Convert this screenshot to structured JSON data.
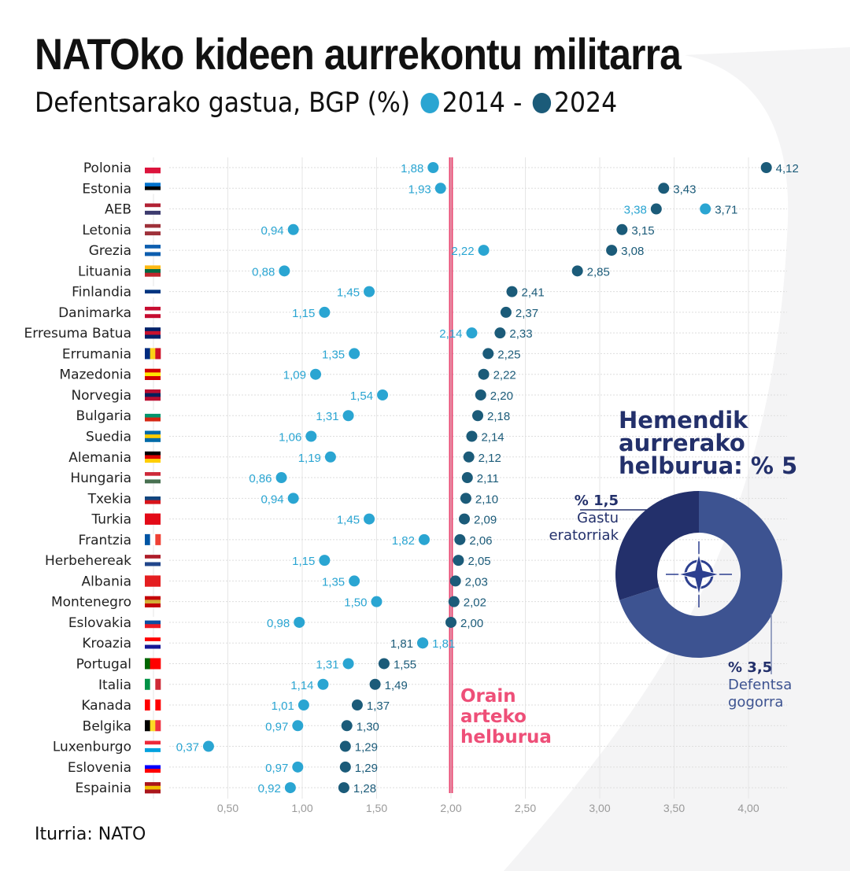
{
  "title": "NATOko kideen aurrekontu militarra",
  "subtitle": {
    "text": "Defentsarako gastua, BGP (%)",
    "y2014": "2014",
    "sep": "-",
    "y2024": "2024"
  },
  "source": "Iturria: NATO",
  "colors": {
    "c2014": "#2aa5d2",
    "c2024": "#1b5b79",
    "target_line": "#e8436e",
    "donut_dark": "#23306b",
    "donut_light": "#3d5391"
  },
  "target_label": [
    "Orain",
    "arteko",
    "helburua"
  ],
  "goal": {
    "title": [
      "Hemendik",
      "aurrerako",
      "helburua: % 5"
    ],
    "slices": [
      {
        "pct": "% 1,5",
        "label": [
          "Gastu",
          "eratorriak"
        ],
        "value": 1.5
      },
      {
        "pct": "% 3,5",
        "label": [
          "Defentsa",
          "gogorra"
        ],
        "value": 3.5
      }
    ],
    "icon": "nato-compass-icon"
  },
  "chart_data": {
    "type": "dumbbell",
    "series": [
      {
        "name": "2014"
      },
      {
        "name": "2024"
      }
    ],
    "xlim": [
      0,
      4.2
    ],
    "x_ticks": [
      "0,50",
      "1,00",
      "1,50",
      "2,00",
      "2,50",
      "3,00",
      "3,50",
      "4,00"
    ],
    "x_tick_values": [
      0.5,
      1,
      1.5,
      2,
      2.5,
      3,
      3.5,
      4
    ],
    "target": 2.0,
    "rows": [
      {
        "country": "Polonia",
        "v2014": 1.88,
        "v2024": 4.12,
        "flag": [
          "h",
          "#ffffff",
          "#dc143c"
        ]
      },
      {
        "country": "Estonia",
        "v2014": 1.93,
        "v2024": 3.43,
        "flag": [
          "h",
          "#0072ce",
          "#000000",
          "#ffffff"
        ]
      },
      {
        "country": "AEB",
        "v2014": 3.71,
        "v2024": 3.38,
        "flag": [
          "h",
          "#b22234",
          "#ffffff",
          "#3c3b6e"
        ]
      },
      {
        "country": "Letonia",
        "v2014": 0.94,
        "v2024": 3.15,
        "flag": [
          "h",
          "#9e3039",
          "#ffffff",
          "#9e3039"
        ]
      },
      {
        "country": "Grezia",
        "v2014": 2.22,
        "v2024": 3.08,
        "flag": [
          "h",
          "#0d5eaf",
          "#ffffff",
          "#0d5eaf"
        ]
      },
      {
        "country": "Lituania",
        "v2014": 0.88,
        "v2024": 2.85,
        "flag": [
          "h",
          "#fdb913",
          "#006a44",
          "#c1272d"
        ]
      },
      {
        "country": "Finlandia",
        "v2014": 1.45,
        "v2024": 2.41,
        "flag": [
          "h",
          "#ffffff",
          "#003580",
          "#ffffff"
        ]
      },
      {
        "country": "Danimarka",
        "v2014": 1.15,
        "v2024": 2.37,
        "flag": [
          "h",
          "#c60c30",
          "#ffffff",
          "#c60c30"
        ]
      },
      {
        "country": "Erresuma Batua",
        "v2014": 2.14,
        "v2024": 2.33,
        "flag": [
          "h",
          "#012169",
          "#c8102e",
          "#012169"
        ]
      },
      {
        "country": "Errumania",
        "v2014": 1.35,
        "v2024": 2.25,
        "flag": [
          "v",
          "#002b7f",
          "#fcd116",
          "#ce1126"
        ]
      },
      {
        "country": "Mazedonia",
        "v2014": 1.09,
        "v2024": 2.22,
        "flag": [
          "h",
          "#d20000",
          "#ffe600",
          "#d20000"
        ]
      },
      {
        "country": "Norvegia",
        "v2014": 1.54,
        "v2024": 2.2,
        "flag": [
          "h",
          "#ba0c2f",
          "#00205b",
          "#ba0c2f"
        ]
      },
      {
        "country": "Bulgaria",
        "v2014": 1.31,
        "v2024": 2.18,
        "flag": [
          "h",
          "#ffffff",
          "#00966e",
          "#d62612"
        ]
      },
      {
        "country": "Suedia",
        "v2014": 1.06,
        "v2024": 2.14,
        "flag": [
          "h",
          "#006aa7",
          "#fecc00",
          "#006aa7"
        ]
      },
      {
        "country": "Alemania",
        "v2014": 1.19,
        "v2024": 2.12,
        "flag": [
          "h",
          "#000000",
          "#dd0000",
          "#ffce00"
        ]
      },
      {
        "country": "Hungaria",
        "v2014": 0.86,
        "v2024": 2.11,
        "flag": [
          "h",
          "#ce2939",
          "#ffffff",
          "#477050"
        ]
      },
      {
        "country": "Txekia",
        "v2014": 0.94,
        "v2024": 2.1,
        "flag": [
          "h",
          "#ffffff",
          "#11457e",
          "#d7141a"
        ]
      },
      {
        "country": "Turkia",
        "v2014": 1.45,
        "v2024": 2.09,
        "flag": [
          "h",
          "#e30a17"
        ]
      },
      {
        "country": "Frantzia",
        "v2014": 1.82,
        "v2024": 2.06,
        "flag": [
          "v",
          "#0055a4",
          "#ffffff",
          "#ef4135"
        ]
      },
      {
        "country": "Herbehereak",
        "v2014": 1.15,
        "v2024": 2.05,
        "flag": [
          "h",
          "#ae1c28",
          "#ffffff",
          "#21468b"
        ]
      },
      {
        "country": "Albania",
        "v2014": 1.35,
        "v2024": 2.03,
        "flag": [
          "h",
          "#e41e20"
        ]
      },
      {
        "country": "Montenegro",
        "v2014": 1.5,
        "v2024": 2.02,
        "flag": [
          "h",
          "#c40308",
          "#d4af37",
          "#c40308"
        ]
      },
      {
        "country": "Eslovakia",
        "v2014": 0.98,
        "v2024": 2.0,
        "flag": [
          "h",
          "#ffffff",
          "#0b4ea2",
          "#ee1c25"
        ]
      },
      {
        "country": "Kroazia",
        "v2014": 1.81,
        "v2024": 1.81,
        "flag": [
          "h",
          "#ff0000",
          "#ffffff",
          "#171796"
        ]
      },
      {
        "country": "Portugal",
        "v2014": 1.31,
        "v2024": 1.55,
        "flag": [
          "v",
          "#006600",
          "#ff0000",
          "#ff0000"
        ]
      },
      {
        "country": "Italia",
        "v2014": 1.14,
        "v2024": 1.49,
        "flag": [
          "v",
          "#009246",
          "#ffffff",
          "#ce2b37"
        ]
      },
      {
        "country": "Kanada",
        "v2014": 1.01,
        "v2024": 1.37,
        "flag": [
          "v",
          "#ff0000",
          "#ffffff",
          "#ff0000"
        ]
      },
      {
        "country": "Belgika",
        "v2014": 0.97,
        "v2024": 1.3,
        "flag": [
          "v",
          "#000000",
          "#fdda24",
          "#ef3340"
        ]
      },
      {
        "country": "Luxenburgo",
        "v2014": 0.37,
        "v2024": 1.29,
        "flag": [
          "h",
          "#ed2939",
          "#ffffff",
          "#00a1de"
        ]
      },
      {
        "country": "Eslovenia",
        "v2014": 0.97,
        "v2024": 1.29,
        "flag": [
          "h",
          "#ffffff",
          "#0000ff",
          "#ff0000"
        ]
      },
      {
        "country": "Espainia",
        "v2014": 0.92,
        "v2024": 1.28,
        "flag": [
          "h",
          "#aa151b",
          "#f1bf00",
          "#aa151b"
        ]
      }
    ]
  }
}
